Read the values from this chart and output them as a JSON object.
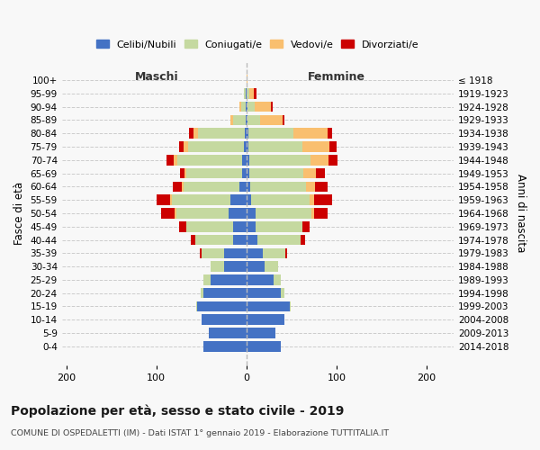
{
  "age_groups": [
    "0-4",
    "5-9",
    "10-14",
    "15-19",
    "20-24",
    "25-29",
    "30-34",
    "35-39",
    "40-44",
    "45-49",
    "50-54",
    "55-59",
    "60-64",
    "65-69",
    "70-74",
    "75-79",
    "80-84",
    "85-89",
    "90-94",
    "95-99",
    "100+"
  ],
  "birth_years": [
    "2014-2018",
    "2009-2013",
    "2004-2008",
    "1999-2003",
    "1994-1998",
    "1989-1993",
    "1984-1988",
    "1979-1983",
    "1974-1978",
    "1969-1973",
    "1964-1968",
    "1959-1963",
    "1954-1958",
    "1949-1953",
    "1944-1948",
    "1939-1943",
    "1934-1938",
    "1929-1933",
    "1924-1928",
    "1919-1923",
    "≤ 1918"
  ],
  "males": {
    "celibi": [
      48,
      42,
      50,
      55,
      48,
      40,
      25,
      25,
      15,
      15,
      20,
      18,
      8,
      5,
      5,
      3,
      2,
      1,
      1,
      1,
      0
    ],
    "coniugati": [
      0,
      0,
      0,
      1,
      3,
      8,
      15,
      25,
      42,
      52,
      58,
      65,
      62,
      62,
      72,
      62,
      52,
      14,
      5,
      2,
      0
    ],
    "vedovi": [
      0,
      0,
      0,
      0,
      0,
      0,
      0,
      0,
      0,
      0,
      2,
      2,
      2,
      2,
      4,
      5,
      5,
      3,
      2,
      0,
      0
    ],
    "divorziati": [
      0,
      0,
      0,
      0,
      0,
      0,
      0,
      2,
      5,
      8,
      15,
      15,
      10,
      5,
      8,
      5,
      5,
      0,
      0,
      0,
      0
    ]
  },
  "females": {
    "nubili": [
      38,
      32,
      42,
      48,
      38,
      30,
      20,
      18,
      12,
      10,
      10,
      5,
      4,
      3,
      3,
      2,
      2,
      1,
      1,
      0,
      0
    ],
    "coniugate": [
      0,
      0,
      0,
      1,
      4,
      8,
      15,
      25,
      48,
      52,
      62,
      65,
      62,
      60,
      68,
      60,
      50,
      14,
      8,
      3,
      0
    ],
    "vedove": [
      0,
      0,
      0,
      0,
      0,
      0,
      0,
      0,
      0,
      0,
      3,
      5,
      10,
      14,
      20,
      30,
      38,
      25,
      18,
      5,
      1
    ],
    "divorziate": [
      0,
      0,
      0,
      0,
      0,
      0,
      0,
      2,
      5,
      8,
      15,
      20,
      14,
      10,
      10,
      8,
      5,
      2,
      2,
      3,
      0
    ]
  },
  "colors": {
    "celibi": "#4472c4",
    "coniugati": "#c5d9a0",
    "vedovi": "#f9bf6f",
    "divorziati": "#cc0000"
  },
  "xlim": [
    -205,
    230
  ],
  "xticks": [
    -200,
    -100,
    0,
    100,
    200
  ],
  "xticklabels": [
    "200",
    "100",
    "0",
    "100",
    "200"
  ],
  "title": "Popolazione per età, sesso e stato civile - 2019",
  "subtitle": "COMUNE DI OSPEDALETTI (IM) - Dati ISTAT 1° gennaio 2019 - Elaborazione TUTTITALIA.IT",
  "ylabel_left": "Fasce di età",
  "ylabel_right": "Anni di nascita",
  "label_maschi": "Maschi",
  "label_femmine": "Femmine",
  "legend_labels": [
    "Celibi/Nubili",
    "Coniugati/e",
    "Vedovi/e",
    "Divorziati/e"
  ],
  "bg_color": "#f8f8f8",
  "grid_color": "#cccccc"
}
